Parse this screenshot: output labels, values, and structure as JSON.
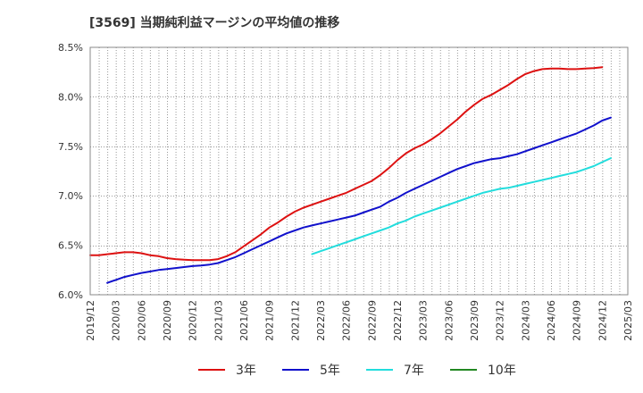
{
  "chart_data": {
    "type": "line",
    "title": "[3569]  当期純利益マージンの平均値の推移",
    "xlabel": "",
    "ylabel": "",
    "ylim": [
      6.0,
      8.5
    ],
    "y_ticks": [
      "6.0%",
      "6.5%",
      "7.0%",
      "7.5%",
      "8.0%",
      "8.5%"
    ],
    "x_ticks": [
      "2019/12",
      "2020/03",
      "2020/06",
      "2020/09",
      "2020/12",
      "2021/03",
      "2021/06",
      "2021/09",
      "2021/12",
      "2022/03",
      "2022/06",
      "2022/09",
      "2022/12",
      "2023/03",
      "2023/06",
      "2023/09",
      "2023/12",
      "2024/03",
      "2024/06",
      "2024/09",
      "2024/12",
      "2025/03"
    ],
    "grid": true,
    "legend_position": "bottom",
    "series": [
      {
        "name": "3年",
        "color": "#dd1111",
        "points": [
          [
            "2019/12",
            6.4
          ],
          [
            "2020/01",
            6.4
          ],
          [
            "2020/02",
            6.41
          ],
          [
            "2020/03",
            6.42
          ],
          [
            "2020/04",
            6.43
          ],
          [
            "2020/05",
            6.43
          ],
          [
            "2020/06",
            6.42
          ],
          [
            "2020/07",
            6.4
          ],
          [
            "2020/08",
            6.39
          ],
          [
            "2020/09",
            6.37
          ],
          [
            "2020/10",
            6.36
          ],
          [
            "2020/11",
            6.355
          ],
          [
            "2020/12",
            6.35
          ],
          [
            "2021/01",
            6.35
          ],
          [
            "2021/02",
            6.35
          ],
          [
            "2021/03",
            6.36
          ],
          [
            "2021/04",
            6.39
          ],
          [
            "2021/05",
            6.43
          ],
          [
            "2021/06",
            6.49
          ],
          [
            "2021/07",
            6.55
          ],
          [
            "2021/08",
            6.61
          ],
          [
            "2021/09",
            6.68
          ],
          [
            "2021/10",
            6.73
          ],
          [
            "2021/11",
            6.79
          ],
          [
            "2021/12",
            6.84
          ],
          [
            "2022/01",
            6.88
          ],
          [
            "2022/02",
            6.91
          ],
          [
            "2022/03",
            6.94
          ],
          [
            "2022/04",
            6.97
          ],
          [
            "2022/05",
            7.0
          ],
          [
            "2022/06",
            7.03
          ],
          [
            "2022/07",
            7.07
          ],
          [
            "2022/08",
            7.11
          ],
          [
            "2022/09",
            7.15
          ],
          [
            "2022/10",
            7.21
          ],
          [
            "2022/11",
            7.28
          ],
          [
            "2022/12",
            7.36
          ],
          [
            "2023/01",
            7.43
          ],
          [
            "2023/02",
            7.48
          ],
          [
            "2023/03",
            7.52
          ],
          [
            "2023/04",
            7.57
          ],
          [
            "2023/05",
            7.63
          ],
          [
            "2023/06",
            7.7
          ],
          [
            "2023/07",
            7.77
          ],
          [
            "2023/08",
            7.85
          ],
          [
            "2023/09",
            7.92
          ],
          [
            "2023/10",
            7.98
          ],
          [
            "2023/11",
            8.02
          ],
          [
            "2023/12",
            8.07
          ],
          [
            "2024/01",
            8.12
          ],
          [
            "2024/02",
            8.18
          ],
          [
            "2024/03",
            8.23
          ],
          [
            "2024/04",
            8.26
          ],
          [
            "2024/05",
            8.28
          ],
          [
            "2024/06",
            8.285
          ],
          [
            "2024/07",
            8.285
          ],
          [
            "2024/08",
            8.28
          ],
          [
            "2024/09",
            8.28
          ],
          [
            "2024/10",
            8.285
          ],
          [
            "2024/11",
            8.29
          ],
          [
            "2024/12",
            8.3
          ]
        ]
      },
      {
        "name": "5年",
        "color": "#1111cc",
        "points": [
          [
            "2020/02",
            6.12
          ],
          [
            "2020/03",
            6.15
          ],
          [
            "2020/04",
            6.18
          ],
          [
            "2020/05",
            6.2
          ],
          [
            "2020/06",
            6.22
          ],
          [
            "2020/07",
            6.235
          ],
          [
            "2020/08",
            6.25
          ],
          [
            "2020/09",
            6.26
          ],
          [
            "2020/10",
            6.27
          ],
          [
            "2020/11",
            6.28
          ],
          [
            "2020/12",
            6.29
          ],
          [
            "2021/01",
            6.295
          ],
          [
            "2021/02",
            6.305
          ],
          [
            "2021/03",
            6.32
          ],
          [
            "2021/04",
            6.35
          ],
          [
            "2021/05",
            6.38
          ],
          [
            "2021/06",
            6.42
          ],
          [
            "2021/07",
            6.46
          ],
          [
            "2021/08",
            6.5
          ],
          [
            "2021/09",
            6.54
          ],
          [
            "2021/10",
            6.58
          ],
          [
            "2021/11",
            6.62
          ],
          [
            "2021/12",
            6.65
          ],
          [
            "2022/01",
            6.68
          ],
          [
            "2022/02",
            6.7
          ],
          [
            "2022/03",
            6.72
          ],
          [
            "2022/04",
            6.74
          ],
          [
            "2022/05",
            6.76
          ],
          [
            "2022/06",
            6.78
          ],
          [
            "2022/07",
            6.8
          ],
          [
            "2022/08",
            6.83
          ],
          [
            "2022/09",
            6.86
          ],
          [
            "2022/10",
            6.89
          ],
          [
            "2022/11",
            6.94
          ],
          [
            "2022/12",
            6.98
          ],
          [
            "2023/01",
            7.03
          ],
          [
            "2023/02",
            7.07
          ],
          [
            "2023/03",
            7.11
          ],
          [
            "2023/04",
            7.15
          ],
          [
            "2023/05",
            7.19
          ],
          [
            "2023/06",
            7.23
          ],
          [
            "2023/07",
            7.27
          ],
          [
            "2023/08",
            7.3
          ],
          [
            "2023/09",
            7.33
          ],
          [
            "2023/10",
            7.35
          ],
          [
            "2023/11",
            7.37
          ],
          [
            "2023/12",
            7.38
          ],
          [
            "2024/01",
            7.4
          ],
          [
            "2024/02",
            7.42
          ],
          [
            "2024/03",
            7.45
          ],
          [
            "2024/04",
            7.48
          ],
          [
            "2024/05",
            7.51
          ],
          [
            "2024/06",
            7.54
          ],
          [
            "2024/07",
            7.57
          ],
          [
            "2024/08",
            7.6
          ],
          [
            "2024/09",
            7.63
          ],
          [
            "2024/10",
            7.67
          ],
          [
            "2024/11",
            7.71
          ],
          [
            "2024/12",
            7.76
          ],
          [
            "2025/01",
            7.79
          ]
        ]
      },
      {
        "name": "7年",
        "color": "#22dddd",
        "points": [
          [
            "2022/02",
            6.41
          ],
          [
            "2022/03",
            6.44
          ],
          [
            "2022/04",
            6.47
          ],
          [
            "2022/05",
            6.5
          ],
          [
            "2022/06",
            6.53
          ],
          [
            "2022/07",
            6.56
          ],
          [
            "2022/08",
            6.59
          ],
          [
            "2022/09",
            6.62
          ],
          [
            "2022/10",
            6.65
          ],
          [
            "2022/11",
            6.68
          ],
          [
            "2022/12",
            6.72
          ],
          [
            "2023/01",
            6.75
          ],
          [
            "2023/02",
            6.79
          ],
          [
            "2023/03",
            6.82
          ],
          [
            "2023/04",
            6.85
          ],
          [
            "2023/05",
            6.88
          ],
          [
            "2023/06",
            6.91
          ],
          [
            "2023/07",
            6.94
          ],
          [
            "2023/08",
            6.97
          ],
          [
            "2023/09",
            7.0
          ],
          [
            "2023/10",
            7.03
          ],
          [
            "2023/11",
            7.05
          ],
          [
            "2023/12",
            7.07
          ],
          [
            "2024/01",
            7.08
          ],
          [
            "2024/02",
            7.1
          ],
          [
            "2024/03",
            7.12
          ],
          [
            "2024/04",
            7.14
          ],
          [
            "2024/05",
            7.16
          ],
          [
            "2024/06",
            7.18
          ],
          [
            "2024/07",
            7.2
          ],
          [
            "2024/08",
            7.22
          ],
          [
            "2024/09",
            7.24
          ],
          [
            "2024/10",
            7.27
          ],
          [
            "2024/11",
            7.3
          ],
          [
            "2024/12",
            7.34
          ],
          [
            "2025/01",
            7.38
          ]
        ]
      },
      {
        "name": "10年",
        "color": "#228822",
        "points": []
      }
    ]
  }
}
